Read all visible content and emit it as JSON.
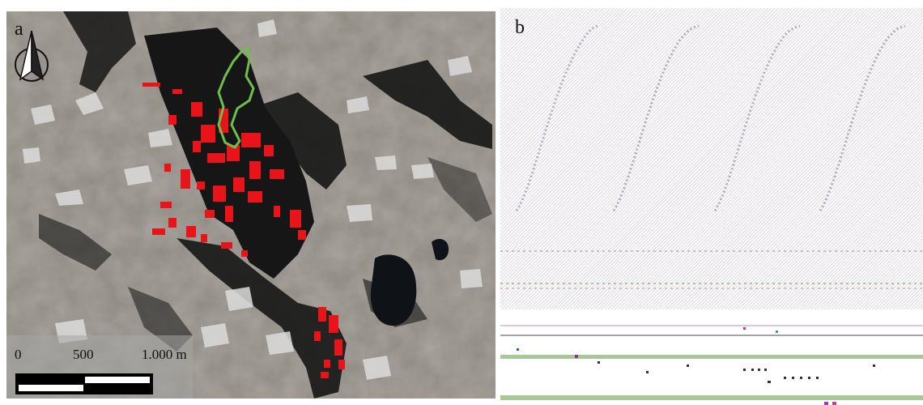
{
  "figure": {
    "panel_a": {
      "label": "a",
      "north_arrow_icon": "north-arrow-icon",
      "scale_bar": {
        "labels": [
          "0",
          "500",
          "1.000 m"
        ]
      },
      "colors": {
        "rockfall_deposits": "#e8141a",
        "outline": "#6cc04a",
        "terrain": "#8e8880",
        "shadow": "#141414",
        "snow": "#d9d9d9",
        "lake": "#111418"
      }
    },
    "panel_b": {
      "label": "b",
      "colors": {
        "stripe_pink": "#e0b8d8",
        "stripe_green": "#a8c898",
        "stripe_grey": "#d6d0d8"
      }
    }
  }
}
